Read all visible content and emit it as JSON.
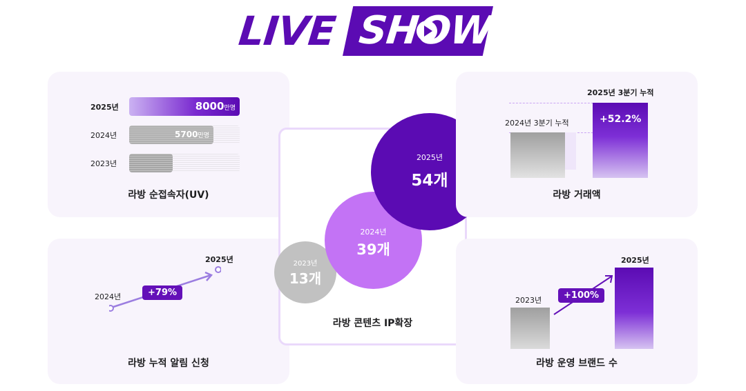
{
  "header": {
    "logo_live": "LIVE",
    "logo_show": "SHOW",
    "play_icon": "play-icon"
  },
  "uv_card": {
    "title": "라방 순접속자(UV)",
    "rows": [
      {
        "year": "2025년",
        "value": "8000",
        "unit": "만명",
        "fill": 1.0
      },
      {
        "year": "2024년",
        "value": "5700",
        "unit": "만명",
        "fill": 0.76
      },
      {
        "year": "2023년",
        "value": "",
        "unit": "",
        "fill": 0.4
      }
    ]
  },
  "ip_card": {
    "title": "라방 콘텐츠 IP확장",
    "bubbles": [
      {
        "year": "2025년",
        "value": "54개"
      },
      {
        "year": "2024년",
        "value": "39개"
      },
      {
        "year": "2023년",
        "value": "13개"
      }
    ]
  },
  "trade_card": {
    "title": "라방 거래액",
    "label_2025": "2025년 3분기 누적",
    "label_2024": "2024년 3분기 누적",
    "growth": "+52.2%"
  },
  "alarm_card": {
    "title": "라방 누적 알림 신청",
    "label_start": "2024년",
    "label_end": "2025년",
    "growth": "+79%"
  },
  "brand_card": {
    "title": "라방 운영 브랜드 수",
    "label_start": "2023년",
    "label_end": "2025년",
    "growth": "+100%"
  },
  "colors": {
    "brand_purple": "#5b0bb3",
    "light_purple": "#c373f5",
    "gray": "#c1c1c1",
    "card_bg": "#f8f4fc"
  }
}
